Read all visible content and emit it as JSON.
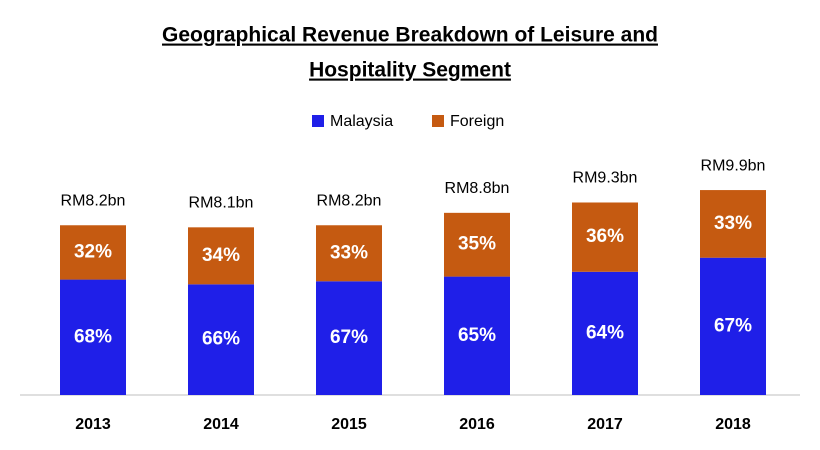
{
  "chart_data": {
    "type": "stacked-bar",
    "title_lines": [
      "Geographical Revenue Breakdown of Leisure and",
      "Hospitality Segment"
    ],
    "categories": [
      "2013",
      "2014",
      "2015",
      "2016",
      "2017",
      "2018"
    ],
    "totals": {
      "values": [
        8.2,
        8.1,
        8.2,
        8.8,
        9.3,
        9.9
      ],
      "value_labels": [
        "RM8.2bn",
        "RM8.1bn",
        "RM8.2bn",
        "RM8.8bn",
        "RM9.3bn",
        "RM9.9bn"
      ]
    },
    "series": [
      {
        "name": "Malaysia",
        "color": "#1f1fe8",
        "values": [
          68,
          66,
          67,
          65,
          64,
          67
        ],
        "value_labels": [
          "68%",
          "66%",
          "67%",
          "65%",
          "64%",
          "67%"
        ]
      },
      {
        "name": "Foreign",
        "color": "#c55a11",
        "values": [
          32,
          34,
          33,
          35,
          36,
          33
        ],
        "value_labels": [
          "32%",
          "34%",
          "33%",
          "35%",
          "36%",
          "33%"
        ]
      }
    ]
  }
}
